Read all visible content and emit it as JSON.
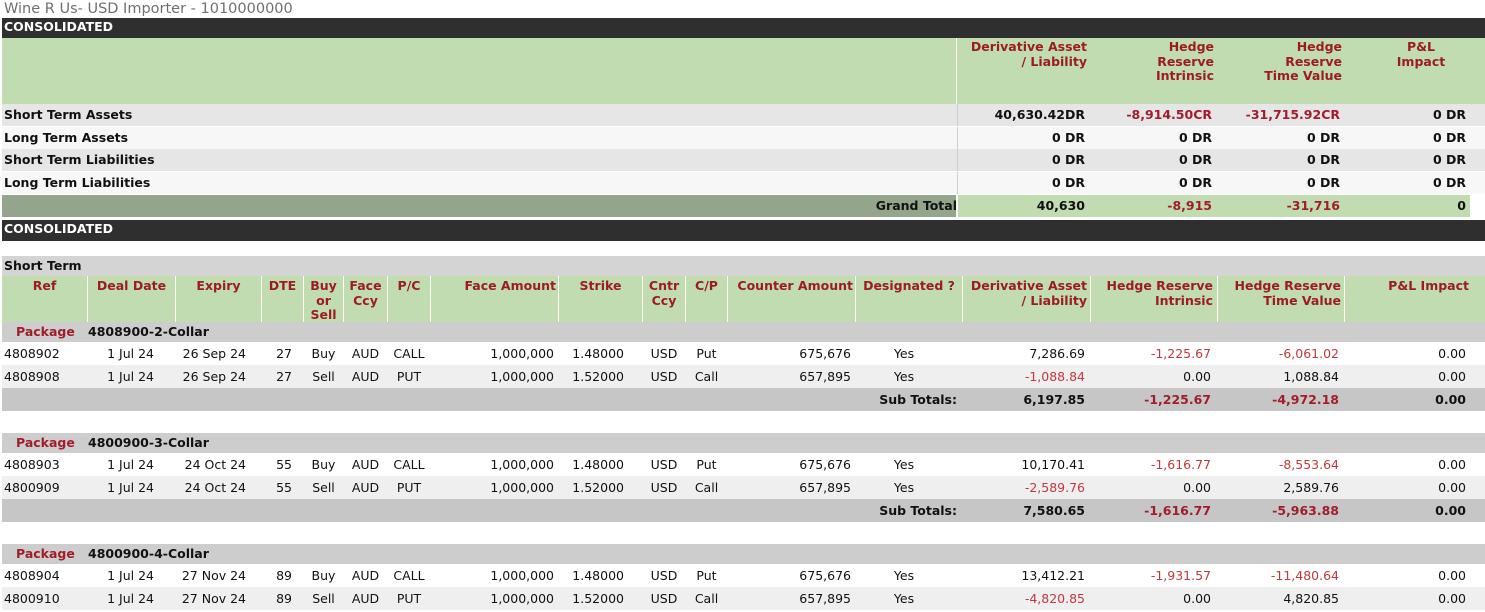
{
  "page": {
    "title": "Wine R Us- USD Importer - 1010000000"
  },
  "summary": {
    "section_label": "CONSOLIDATED",
    "headers": {
      "deriv": "Derivative Asset / Liability",
      "hri": "Hedge Reserve Intrinsic",
      "hrtv": "Hedge Reserve Time Value",
      "pl": "P&L Impact"
    },
    "rows": [
      {
        "label": "Short Term Assets",
        "deriv": "40,630.42DR",
        "hri": "-8,914.50CR",
        "hrtv": "-31,715.92CR",
        "pl": "0  DR"
      },
      {
        "label": "Long Term Assets",
        "deriv": "0  DR",
        "hri": "0  DR",
        "hrtv": "0  DR",
        "pl": "0  DR"
      },
      {
        "label": "Short Term Liabilities",
        "deriv": "0  DR",
        "hri": "0  DR",
        "hrtv": "0  DR",
        "pl": "0  DR"
      },
      {
        "label": "Long Term Liabilities",
        "deriv": "0  DR",
        "hri": "0  DR",
        "hrtv": "0  DR",
        "pl": "0  DR"
      }
    ],
    "grand_total": {
      "label": "Grand Total",
      "deriv": "40,630",
      "hri": "-8,915",
      "hrtv": "-31,716",
      "pl": "0"
    }
  },
  "detail": {
    "section_label": "CONSOLIDATED",
    "term_label": "Short Term",
    "columns": {
      "ref": "Ref",
      "deal_date": "Deal Date",
      "expiry": "Expiry",
      "dte": "DTE",
      "buy_sell": "Buy or Sell",
      "face_ccy": "Face Ccy",
      "pc": "P/C",
      "face_amount": "Face Amount",
      "strike": "Strike",
      "cntr_ccy": "Cntr Ccy",
      "cp": "C/P",
      "counter_amount": "Counter Amount",
      "designated": "Designated ?",
      "deriv": "Derivative Asset / Liability",
      "hri": "Hedge Reserve Intrinsic",
      "hrtv": "Hedge Reserve Time Value",
      "pl": "P&L Impact"
    },
    "package_label": "Package",
    "subtotal_label": "Sub Totals:",
    "packages": [
      {
        "name": "4808900-2-Collar",
        "rows": [
          {
            "ref": "4808902",
            "deal_date": "1 Jul 24",
            "expiry": "26 Sep 24",
            "dte": "27",
            "buy_sell": "Buy",
            "face_ccy": "AUD",
            "pc": "CALL",
            "face_amount": "1,000,000",
            "strike": "1.48000",
            "cntr_ccy": "USD",
            "cp": "Put",
            "counter_amount": "675,676",
            "designated": "Yes",
            "deriv": "7,286.69",
            "hri": "-1,225.67",
            "hrtv": "-6,061.02",
            "pl": "0.00"
          },
          {
            "ref": "4808908",
            "deal_date": "1 Jul 24",
            "expiry": "26 Sep 24",
            "dte": "27",
            "buy_sell": "Sell",
            "face_ccy": "AUD",
            "pc": "PUT",
            "face_amount": "1,000,000",
            "strike": "1.52000",
            "cntr_ccy": "USD",
            "cp": "Call",
            "counter_amount": "657,895",
            "designated": "Yes",
            "deriv": "-1,088.84",
            "hri": "0.00",
            "hrtv": "1,088.84",
            "pl": "0.00"
          }
        ],
        "subtotal": {
          "deriv": "6,197.85",
          "hri": "-1,225.67",
          "hrtv": "-4,972.18",
          "pl": "0.00"
        }
      },
      {
        "name": "4800900-3-Collar",
        "rows": [
          {
            "ref": "4808903",
            "deal_date": "1 Jul 24",
            "expiry": "24 Oct 24",
            "dte": "55",
            "buy_sell": "Buy",
            "face_ccy": "AUD",
            "pc": "CALL",
            "face_amount": "1,000,000",
            "strike": "1.48000",
            "cntr_ccy": "USD",
            "cp": "Put",
            "counter_amount": "675,676",
            "designated": "Yes",
            "deriv": "10,170.41",
            "hri": "-1,616.77",
            "hrtv": "-8,553.64",
            "pl": "0.00"
          },
          {
            "ref": "4800909",
            "deal_date": "1 Jul 24",
            "expiry": "24 Oct 24",
            "dte": "55",
            "buy_sell": "Sell",
            "face_ccy": "AUD",
            "pc": "PUT",
            "face_amount": "1,000,000",
            "strike": "1.52000",
            "cntr_ccy": "USD",
            "cp": "Call",
            "counter_amount": "657,895",
            "designated": "Yes",
            "deriv": "-2,589.76",
            "hri": "0.00",
            "hrtv": "2,589.76",
            "pl": "0.00"
          }
        ],
        "subtotal": {
          "deriv": "7,580.65",
          "hri": "-1,616.77",
          "hrtv": "-5,963.88",
          "pl": "0.00"
        }
      },
      {
        "name": "4800900-4-Collar",
        "rows": [
          {
            "ref": "4808904",
            "deal_date": "1 Jul 24",
            "expiry": "27 Nov 24",
            "dte": "89",
            "buy_sell": "Buy",
            "face_ccy": "AUD",
            "pc": "CALL",
            "face_amount": "1,000,000",
            "strike": "1.48000",
            "cntr_ccy": "USD",
            "cp": "Put",
            "counter_amount": "675,676",
            "designated": "Yes",
            "deriv": "13,412.21",
            "hri": "-1,931.57",
            "hrtv": "-11,480.64",
            "pl": "0.00"
          },
          {
            "ref": "4800910",
            "deal_date": "1 Jul 24",
            "expiry": "27 Nov 24",
            "dte": "89",
            "buy_sell": "Sell",
            "face_ccy": "AUD",
            "pc": "PUT",
            "face_amount": "1,000,000",
            "strike": "1.52000",
            "cntr_ccy": "USD",
            "cp": "Call",
            "counter_amount": "657,895",
            "designated": "Yes",
            "deriv": "-4,820.85",
            "hri": "0.00",
            "hrtv": "4,820.85",
            "pl": "0.00"
          }
        ]
      }
    ]
  }
}
